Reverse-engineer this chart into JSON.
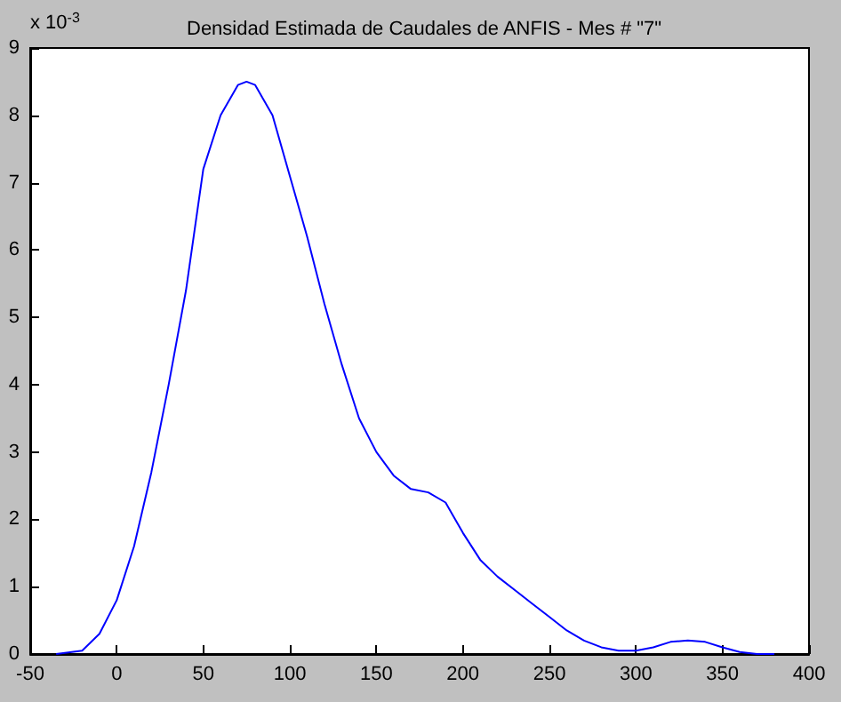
{
  "chart_data": {
    "type": "line",
    "title": "Densidad Estimada de Caudales de ANFIS - Mes # \"7\"",
    "annotations": [
      "x 10$^{-3}$"
    ],
    "series": [
      {
        "color": "#0000ff",
        "x": [
          -35,
          -20,
          -10,
          0,
          10,
          20,
          30,
          40,
          50,
          60,
          70,
          75,
          80,
          90,
          100,
          110,
          120,
          130,
          140,
          150,
          160,
          170,
          180,
          190,
          200,
          210,
          220,
          230,
          240,
          250,
          260,
          270,
          280,
          290,
          300,
          310,
          320,
          330,
          340,
          350,
          360,
          370,
          380
        ],
        "values": [
          0,
          0.05,
          0.3,
          0.8,
          1.6,
          2.7,
          4.0,
          5.4,
          7.2,
          8.0,
          8.45,
          8.5,
          8.45,
          8.0,
          7.1,
          6.2,
          5.2,
          4.3,
          3.5,
          3.0,
          2.65,
          2.45,
          2.4,
          2.25,
          1.8,
          1.4,
          1.15,
          0.95,
          0.75,
          0.55,
          0.35,
          0.2,
          0.1,
          0.05,
          0.05,
          0.1,
          0.18,
          0.2,
          0.18,
          0.1,
          0.03,
          0,
          0
        ]
      }
    ],
    "xlim": [
      -50,
      400
    ],
    "xticks": [
      -50,
      0,
      50,
      100,
      150,
      200,
      250,
      300,
      350,
      400
    ],
    "ylim": [
      0,
      9
    ],
    "yticks": [
      0,
      1,
      2,
      3,
      4,
      5,
      6,
      7,
      8,
      9
    ],
    "marker": "none",
    "line_style": "solid"
  }
}
